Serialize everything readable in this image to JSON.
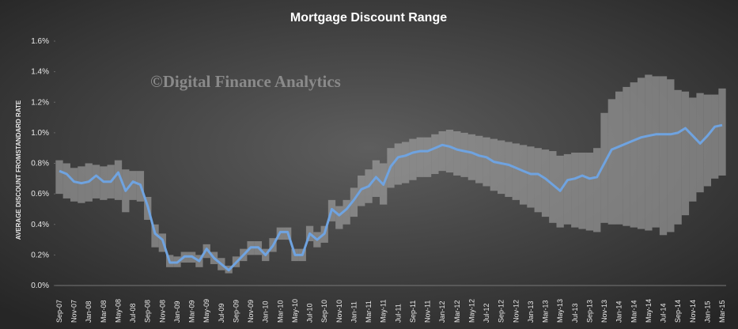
{
  "chart_data": {
    "type": "line-band",
    "title": "Mortgage  Discount  Range",
    "watermark": "©Digital Finance Analytics",
    "y_label": "AVERAGE DISCOUNT FROMSTANDARD RATE",
    "categories": [
      "Sep-07",
      null,
      "Nov-07",
      null,
      "Jan-08",
      null,
      "Mar-08",
      null,
      "May-08",
      null,
      "Jul-08",
      null,
      "Sep-08",
      null,
      "Nov-08",
      null,
      "Jan-09",
      null,
      "Mar-09",
      null,
      "May-09",
      null,
      "Jul-09",
      null,
      "Sep-09",
      null,
      "Nov-09",
      null,
      "Jan-10",
      null,
      "Mar-10",
      null,
      "May-10",
      null,
      "Jul-10",
      null,
      "Sep-10",
      null,
      "Nov-10",
      null,
      "Jan-11",
      null,
      "Mar-11",
      null,
      "May-11",
      null,
      "Jul-11",
      null,
      "Sep-11",
      null,
      "Nov-11",
      null,
      "Jan-12",
      null,
      "Mar-12",
      null,
      "May-12",
      null,
      "Jul-12",
      null,
      "Sep-12",
      null,
      "Nov-12",
      null,
      "Jan-13",
      null,
      "Mar-13",
      null,
      "May-13",
      null,
      "Jul-13",
      null,
      "Sep-13",
      null,
      "Nov-13",
      null,
      "Jan-14",
      null,
      "Mar-14",
      null,
      "May-14",
      null,
      "Jul-14",
      null,
      "Sep-14",
      null,
      "Nov-14",
      null,
      "Jan-15",
      null,
      "Mar-15"
    ],
    "series": [
      {
        "color": "#6fa3e0",
        "values": [
          0.75,
          0.73,
          0.68,
          0.67,
          0.68,
          0.72,
          0.68,
          0.68,
          0.74,
          0.62,
          0.68,
          0.66,
          0.52,
          0.34,
          0.3,
          0.15,
          0.15,
          0.19,
          0.19,
          0.16,
          0.24,
          0.18,
          0.14,
          0.1,
          0.15,
          0.2,
          0.25,
          0.25,
          0.2,
          0.26,
          0.35,
          0.35,
          0.2,
          0.2,
          0.34,
          0.3,
          0.34,
          0.5,
          0.46,
          0.5,
          0.56,
          0.63,
          0.65,
          0.71,
          0.66,
          0.78,
          0.84,
          0.85,
          0.87,
          0.88,
          0.88,
          0.9,
          0.92,
          0.91,
          0.89,
          0.88,
          0.87,
          0.85,
          0.84,
          0.81,
          0.8,
          0.79,
          0.77,
          0.75,
          0.73,
          0.73,
          0.7,
          0.66,
          0.62,
          0.69,
          0.7,
          0.72,
          0.7,
          0.71,
          0.8,
          0.89,
          0.91,
          0.93,
          0.95,
          0.97,
          0.98,
          0.99,
          0.99,
          0.99,
          1.0,
          1.03,
          0.98,
          0.93,
          0.98,
          1.04,
          1.05
        ]
      }
    ],
    "band": {
      "color": "#a8a8a8",
      "low": [
        0.6,
        0.57,
        0.55,
        0.54,
        0.55,
        0.57,
        0.56,
        0.57,
        0.56,
        0.48,
        0.56,
        0.55,
        0.43,
        0.25,
        0.22,
        0.12,
        0.12,
        0.15,
        0.15,
        0.12,
        0.18,
        0.14,
        0.1,
        0.08,
        0.12,
        0.16,
        0.2,
        0.2,
        0.16,
        0.22,
        0.3,
        0.3,
        0.16,
        0.16,
        0.29,
        0.25,
        0.28,
        0.42,
        0.37,
        0.4,
        0.45,
        0.52,
        0.54,
        0.58,
        0.53,
        0.64,
        0.66,
        0.67,
        0.69,
        0.71,
        0.71,
        0.73,
        0.75,
        0.74,
        0.72,
        0.71,
        0.69,
        0.67,
        0.65,
        0.62,
        0.6,
        0.58,
        0.56,
        0.53,
        0.51,
        0.48,
        0.45,
        0.41,
        0.38,
        0.4,
        0.38,
        0.37,
        0.36,
        0.35,
        0.41,
        0.4,
        0.4,
        0.39,
        0.38,
        0.37,
        0.36,
        0.38,
        0.33,
        0.35,
        0.4,
        0.46,
        0.55,
        0.61,
        0.65,
        0.7,
        0.72
      ],
      "high": [
        0.82,
        0.8,
        0.77,
        0.78,
        0.8,
        0.79,
        0.78,
        0.79,
        0.82,
        0.76,
        0.75,
        0.75,
        0.58,
        0.4,
        0.34,
        0.2,
        0.19,
        0.22,
        0.22,
        0.2,
        0.27,
        0.22,
        0.18,
        0.13,
        0.19,
        0.24,
        0.29,
        0.29,
        0.24,
        0.31,
        0.38,
        0.38,
        0.24,
        0.24,
        0.39,
        0.35,
        0.39,
        0.56,
        0.52,
        0.56,
        0.64,
        0.72,
        0.76,
        0.82,
        0.8,
        0.9,
        0.93,
        0.94,
        0.96,
        0.97,
        0.97,
        0.99,
        1.01,
        1.02,
        1.01,
        1.0,
        0.99,
        0.98,
        0.97,
        0.96,
        0.95,
        0.94,
        0.93,
        0.92,
        0.91,
        0.9,
        0.89,
        0.88,
        0.85,
        0.86,
        0.87,
        0.87,
        0.87,
        0.9,
        1.13,
        1.22,
        1.27,
        1.3,
        1.33,
        1.36,
        1.38,
        1.37,
        1.37,
        1.35,
        1.28,
        1.27,
        1.23,
        1.26,
        1.25,
        1.25,
        1.29
      ]
    },
    "ylim": [
      0,
      1.6
    ],
    "yticks": [
      {
        "value": 0,
        "label": "0.0%"
      },
      {
        "value": 0.2,
        "label": "0.2%"
      },
      {
        "value": 0.4,
        "label": "0.4%"
      },
      {
        "value": 0.6,
        "label": "0.6%"
      },
      {
        "value": 0.8,
        "label": "0.8%"
      },
      {
        "value": 1.0,
        "label": "1.0%"
      },
      {
        "value": 1.2,
        "label": "1.2%"
      },
      {
        "value": 1.4,
        "label": "1.4%"
      },
      {
        "value": 1.6,
        "label": "1.6%"
      }
    ],
    "grid": false
  }
}
